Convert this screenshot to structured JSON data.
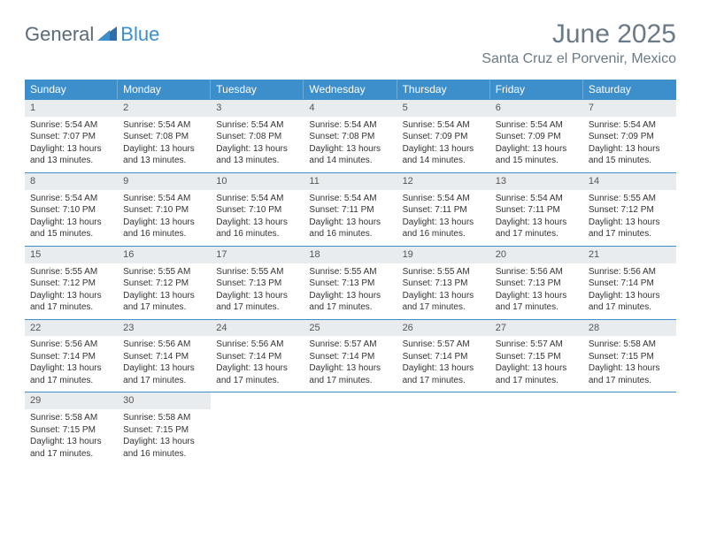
{
  "logo": {
    "text1": "General",
    "text2": "Blue"
  },
  "title": "June 2025",
  "location": "Santa Cruz el Porvenir, Mexico",
  "colors": {
    "header_bar": "#3d8fcc",
    "daynum_bg": "#e8ecef",
    "text_muted": "#6a7a88",
    "row_border": "#3d8fcc"
  },
  "weekdays": [
    "Sunday",
    "Monday",
    "Tuesday",
    "Wednesday",
    "Thursday",
    "Friday",
    "Saturday"
  ],
  "start_offset": 0,
  "days": [
    {
      "n": "1",
      "sunrise": "Sunrise: 5:54 AM",
      "sunset": "Sunset: 7:07 PM",
      "daylight": "Daylight: 13 hours and 13 minutes."
    },
    {
      "n": "2",
      "sunrise": "Sunrise: 5:54 AM",
      "sunset": "Sunset: 7:08 PM",
      "daylight": "Daylight: 13 hours and 13 minutes."
    },
    {
      "n": "3",
      "sunrise": "Sunrise: 5:54 AM",
      "sunset": "Sunset: 7:08 PM",
      "daylight": "Daylight: 13 hours and 13 minutes."
    },
    {
      "n": "4",
      "sunrise": "Sunrise: 5:54 AM",
      "sunset": "Sunset: 7:08 PM",
      "daylight": "Daylight: 13 hours and 14 minutes."
    },
    {
      "n": "5",
      "sunrise": "Sunrise: 5:54 AM",
      "sunset": "Sunset: 7:09 PM",
      "daylight": "Daylight: 13 hours and 14 minutes."
    },
    {
      "n": "6",
      "sunrise": "Sunrise: 5:54 AM",
      "sunset": "Sunset: 7:09 PM",
      "daylight": "Daylight: 13 hours and 15 minutes."
    },
    {
      "n": "7",
      "sunrise": "Sunrise: 5:54 AM",
      "sunset": "Sunset: 7:09 PM",
      "daylight": "Daylight: 13 hours and 15 minutes."
    },
    {
      "n": "8",
      "sunrise": "Sunrise: 5:54 AM",
      "sunset": "Sunset: 7:10 PM",
      "daylight": "Daylight: 13 hours and 15 minutes."
    },
    {
      "n": "9",
      "sunrise": "Sunrise: 5:54 AM",
      "sunset": "Sunset: 7:10 PM",
      "daylight": "Daylight: 13 hours and 16 minutes."
    },
    {
      "n": "10",
      "sunrise": "Sunrise: 5:54 AM",
      "sunset": "Sunset: 7:10 PM",
      "daylight": "Daylight: 13 hours and 16 minutes."
    },
    {
      "n": "11",
      "sunrise": "Sunrise: 5:54 AM",
      "sunset": "Sunset: 7:11 PM",
      "daylight": "Daylight: 13 hours and 16 minutes."
    },
    {
      "n": "12",
      "sunrise": "Sunrise: 5:54 AM",
      "sunset": "Sunset: 7:11 PM",
      "daylight": "Daylight: 13 hours and 16 minutes."
    },
    {
      "n": "13",
      "sunrise": "Sunrise: 5:54 AM",
      "sunset": "Sunset: 7:11 PM",
      "daylight": "Daylight: 13 hours and 17 minutes."
    },
    {
      "n": "14",
      "sunrise": "Sunrise: 5:55 AM",
      "sunset": "Sunset: 7:12 PM",
      "daylight": "Daylight: 13 hours and 17 minutes."
    },
    {
      "n": "15",
      "sunrise": "Sunrise: 5:55 AM",
      "sunset": "Sunset: 7:12 PM",
      "daylight": "Daylight: 13 hours and 17 minutes."
    },
    {
      "n": "16",
      "sunrise": "Sunrise: 5:55 AM",
      "sunset": "Sunset: 7:12 PM",
      "daylight": "Daylight: 13 hours and 17 minutes."
    },
    {
      "n": "17",
      "sunrise": "Sunrise: 5:55 AM",
      "sunset": "Sunset: 7:13 PM",
      "daylight": "Daylight: 13 hours and 17 minutes."
    },
    {
      "n": "18",
      "sunrise": "Sunrise: 5:55 AM",
      "sunset": "Sunset: 7:13 PM",
      "daylight": "Daylight: 13 hours and 17 minutes."
    },
    {
      "n": "19",
      "sunrise": "Sunrise: 5:55 AM",
      "sunset": "Sunset: 7:13 PM",
      "daylight": "Daylight: 13 hours and 17 minutes."
    },
    {
      "n": "20",
      "sunrise": "Sunrise: 5:56 AM",
      "sunset": "Sunset: 7:13 PM",
      "daylight": "Daylight: 13 hours and 17 minutes."
    },
    {
      "n": "21",
      "sunrise": "Sunrise: 5:56 AM",
      "sunset": "Sunset: 7:14 PM",
      "daylight": "Daylight: 13 hours and 17 minutes."
    },
    {
      "n": "22",
      "sunrise": "Sunrise: 5:56 AM",
      "sunset": "Sunset: 7:14 PM",
      "daylight": "Daylight: 13 hours and 17 minutes."
    },
    {
      "n": "23",
      "sunrise": "Sunrise: 5:56 AM",
      "sunset": "Sunset: 7:14 PM",
      "daylight": "Daylight: 13 hours and 17 minutes."
    },
    {
      "n": "24",
      "sunrise": "Sunrise: 5:56 AM",
      "sunset": "Sunset: 7:14 PM",
      "daylight": "Daylight: 13 hours and 17 minutes."
    },
    {
      "n": "25",
      "sunrise": "Sunrise: 5:57 AM",
      "sunset": "Sunset: 7:14 PM",
      "daylight": "Daylight: 13 hours and 17 minutes."
    },
    {
      "n": "26",
      "sunrise": "Sunrise: 5:57 AM",
      "sunset": "Sunset: 7:14 PM",
      "daylight": "Daylight: 13 hours and 17 minutes."
    },
    {
      "n": "27",
      "sunrise": "Sunrise: 5:57 AM",
      "sunset": "Sunset: 7:15 PM",
      "daylight": "Daylight: 13 hours and 17 minutes."
    },
    {
      "n": "28",
      "sunrise": "Sunrise: 5:58 AM",
      "sunset": "Sunset: 7:15 PM",
      "daylight": "Daylight: 13 hours and 17 minutes."
    },
    {
      "n": "29",
      "sunrise": "Sunrise: 5:58 AM",
      "sunset": "Sunset: 7:15 PM",
      "daylight": "Daylight: 13 hours and 17 minutes."
    },
    {
      "n": "30",
      "sunrise": "Sunrise: 5:58 AM",
      "sunset": "Sunset: 7:15 PM",
      "daylight": "Daylight: 13 hours and 16 minutes."
    }
  ]
}
